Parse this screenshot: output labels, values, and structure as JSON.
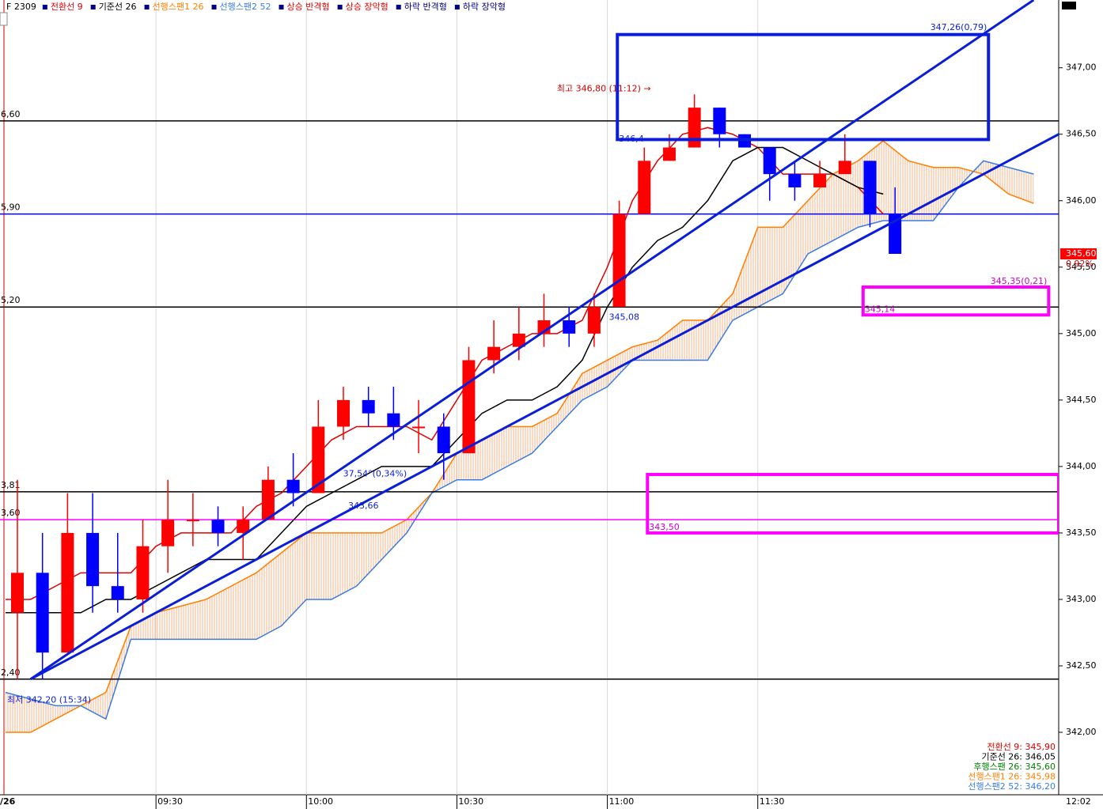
{
  "chart_data": {
    "type": "candlestick",
    "symbol": "F 2309",
    "up_color": "#ff0000",
    "down_color": "#0000ff",
    "ylim": [
      341.53,
      347.51
    ],
    "yticks": [
      {
        "value": 342,
        "label": "342,00"
      },
      {
        "value": 342.5,
        "label": "342,50"
      },
      {
        "value": 343,
        "label": "343,00"
      },
      {
        "value": 343.5,
        "label": "343,50"
      },
      {
        "value": 344,
        "label": "344,00"
      },
      {
        "value": 344.5,
        "label": "344,50"
      },
      {
        "value": 345,
        "label": "345,00"
      },
      {
        "value": 345.5,
        "label": "345,50"
      },
      {
        "value": 346,
        "label": "346,00"
      },
      {
        "value": 346.5,
        "label": "346,50"
      },
      {
        "value": 347,
        "label": "347,00"
      }
    ],
    "xlim": [
      "09:00",
      "12:30"
    ],
    "xticks": [
      "09:30",
      "10:00",
      "10:30",
      "11:00",
      "11:30"
    ],
    "date_label": "/26",
    "time_label": "12:02",
    "x": [
      "09:00",
      "09:05",
      "09:10",
      "09:15",
      "09:20",
      "09:25",
      "09:30",
      "09:35",
      "09:40",
      "09:45",
      "09:50",
      "09:55",
      "10:00",
      "10:05",
      "10:10",
      "10:15",
      "10:20",
      "10:25",
      "10:30",
      "10:35",
      "10:40",
      "10:45",
      "10:50",
      "10:55",
      "11:00",
      "11:05",
      "11:10",
      "11:15",
      "11:20",
      "11:25",
      "11:30",
      "11:35",
      "11:40",
      "11:45",
      "11:50",
      "11:55"
    ],
    "open": [
      342.9,
      343.2,
      342.6,
      343.5,
      343.1,
      343.0,
      343.4,
      343.6,
      343.6,
      343.5,
      343.6,
      343.9,
      343.8,
      344.3,
      344.5,
      344.4,
      344.3,
      344.3,
      344.1,
      344.8,
      344.9,
      345.0,
      345.1,
      345.0,
      345.2,
      345.9,
      346.3,
      346.4,
      346.7,
      346.5,
      346.4,
      346.2,
      346.1,
      346.2,
      346.3,
      345.9
    ],
    "high": [
      343.9,
      343.5,
      343.8,
      343.8,
      343.5,
      343.6,
      343.9,
      343.8,
      343.7,
      343.7,
      344.0,
      344.1,
      344.5,
      344.6,
      344.6,
      344.6,
      344.5,
      344.4,
      344.9,
      345.1,
      345.2,
      345.3,
      345.2,
      345.3,
      346.0,
      346.4,
      346.5,
      346.8,
      346.7,
      346.5,
      346.4,
      346.3,
      346.3,
      346.5,
      346.3,
      346.1
    ],
    "low": [
      342.4,
      342.4,
      342.6,
      342.9,
      342.9,
      342.9,
      343.2,
      343.4,
      343.4,
      343.3,
      343.6,
      343.7,
      343.8,
      344.2,
      344.3,
      344.2,
      344.1,
      343.9,
      344.1,
      344.7,
      344.8,
      344.9,
      344.9,
      344.9,
      345.2,
      345.9,
      346.3,
      346.4,
      346.4,
      346.4,
      346.0,
      346.0,
      346.1,
      346.2,
      345.8,
      345.6
    ],
    "close": [
      343.2,
      342.6,
      343.5,
      343.1,
      343.0,
      343.4,
      343.6,
      343.6,
      343.5,
      343.6,
      343.9,
      343.8,
      344.3,
      344.5,
      344.4,
      344.3,
      344.3,
      344.1,
      344.8,
      344.9,
      345.0,
      345.1,
      345.0,
      345.2,
      345.9,
      346.3,
      346.4,
      346.7,
      346.5,
      346.4,
      346.2,
      346.1,
      346.2,
      346.3,
      345.9,
      345.6
    ],
    "series": [
      {
        "name": "전환선 9",
        "color": "#dd0000",
        "values": [
          343.0,
          343.0,
          343.1,
          343.2,
          343.2,
          343.2,
          343.4,
          343.5,
          343.5,
          343.5,
          343.7,
          343.8,
          344.0,
          344.2,
          344.3,
          344.3,
          344.3,
          344.2,
          344.5,
          344.8,
          344.9,
          345.0,
          345.0,
          345.1,
          345.5,
          346.0,
          346.3,
          346.5,
          346.55,
          346.5,
          346.4,
          346.2,
          346.2,
          346.2,
          346.1,
          345.9
        ]
      },
      {
        "name": "기준선 26",
        "color": "#000000",
        "values": [
          342.9,
          342.9,
          342.9,
          342.9,
          343.0,
          343.0,
          343.1,
          343.2,
          343.3,
          343.3,
          343.3,
          343.5,
          343.7,
          343.8,
          343.9,
          344.0,
          344.0,
          344.0,
          344.2,
          344.4,
          344.5,
          344.5,
          344.6,
          344.8,
          345.2,
          345.5,
          345.7,
          345.8,
          346.0,
          346.3,
          346.4,
          346.4,
          346.3,
          346.2,
          346.1,
          346.05
        ]
      }
    ],
    "spans": {
      "x": [
        "09:00",
        "09:05",
        "09:10",
        "09:15",
        "09:20",
        "09:25",
        "09:30",
        "09:35",
        "09:40",
        "09:45",
        "09:50",
        "09:55",
        "10:00",
        "10:05",
        "10:10",
        "10:15",
        "10:20",
        "10:25",
        "10:30",
        "10:35",
        "10:40",
        "10:45",
        "10:50",
        "10:55",
        "11:00",
        "11:05",
        "11:10",
        "11:15",
        "11:20",
        "11:25",
        "11:30",
        "11:35",
        "11:40",
        "11:45",
        "11:50",
        "11:55",
        "12:00",
        "12:05",
        "12:10",
        "12:15",
        "12:20",
        "12:25"
      ],
      "series": [
        {
          "name": "선행스팬1 26",
          "color": "#ff7f00",
          "values": [
            342.0,
            342.0,
            342.1,
            342.2,
            342.3,
            342.8,
            342.9,
            342.95,
            343.0,
            343.1,
            343.2,
            343.35,
            343.5,
            343.5,
            343.5,
            343.5,
            343.6,
            343.8,
            344.1,
            344.2,
            344.3,
            344.3,
            344.4,
            344.7,
            344.8,
            344.9,
            344.95,
            345.1,
            345.1,
            345.3,
            345.8,
            345.8,
            346.0,
            346.2,
            346.3,
            346.45,
            346.3,
            346.25,
            346.25,
            346.2,
            346.05,
            345.98
          ]
        },
        {
          "name": "선행스팬2 52",
          "color": "#3a7de0",
          "values": [
            342.3,
            342.25,
            342.2,
            342.2,
            342.1,
            342.7,
            342.7,
            342.7,
            342.7,
            342.7,
            342.7,
            342.8,
            343.0,
            343.0,
            343.1,
            343.3,
            343.5,
            343.8,
            343.9,
            343.9,
            344.0,
            344.1,
            344.3,
            344.5,
            344.6,
            344.8,
            344.8,
            344.8,
            344.8,
            345.1,
            345.2,
            345.3,
            345.6,
            345.7,
            345.8,
            345.85,
            345.85,
            345.85,
            346.1,
            346.3,
            346.25,
            346.2
          ]
        }
      ]
    },
    "patterns": [
      {
        "name": "상승 반격형",
        "color": "#dd0000"
      },
      {
        "name": "상승 장악형",
        "color": "#dd0000"
      },
      {
        "name": "하락 반격형",
        "color": "#000080"
      },
      {
        "name": "하락 장악형",
        "color": "#000080"
      }
    ],
    "hlines": [
      {
        "value": 346.6,
        "label": "6,60",
        "color": "#000000"
      },
      {
        "value": 345.9,
        "label": "5,90",
        "color": "#0000ff"
      },
      {
        "value": 345.2,
        "label": "5,20",
        "color": "#000000"
      },
      {
        "value": 343.81,
        "label": "3,81",
        "color": "#000000"
      },
      {
        "value": 343.6,
        "label": "3,60",
        "color": "#ff00ff"
      },
      {
        "value": 342.4,
        "label": "2,40",
        "color": "#000000"
      }
    ],
    "trendlines": [
      {
        "x": [
          "09:05",
          "12:25"
        ],
        "y": [
          342.4,
          347.51
        ],
        "color": "#0a1ed8"
      },
      {
        "x": [
          "09:05",
          "12:30"
        ],
        "y": [
          342.4,
          346.5
        ],
        "color": "#0a1ed8"
      }
    ],
    "boxes": [
      {
        "x": [
          "11:02",
          "12:16"
        ],
        "y": [
          347.25,
          346.46
        ],
        "color": "#0a1ed8"
      },
      {
        "x": [
          "11:51",
          "12:28"
        ],
        "y": [
          345.35,
          345.14
        ],
        "color": "#ff00ff"
      },
      {
        "x": [
          "11:08",
          "12:30"
        ],
        "y": [
          343.94,
          343.5
        ],
        "color": "#ff00ff"
      }
    ],
    "annotations": [
      {
        "text": "347,26(0,79)",
        "x": "12:16",
        "y": 347.26,
        "color": "#0a1ed8",
        "align": "end"
      },
      {
        "text": "345,35(0,21)",
        "x": "12:28",
        "y": 345.35,
        "color": "#cc00cc",
        "align": "end"
      },
      {
        "text": "345,14",
        "x": "11:51",
        "y": 345.14,
        "color": "#cc00cc",
        "align": "start"
      },
      {
        "text": "343,50",
        "x": "11:08",
        "y": 343.5,
        "color": "#cc00cc",
        "align": "start"
      },
      {
        "text": "345,08",
        "x": "11:00",
        "y": 345.08,
        "color": "#0a1ed8",
        "align": "start"
      },
      {
        "text": "343,66",
        "x": "10:08",
        "y": 343.66,
        "color": "#0a1ed8",
        "align": "start"
      },
      {
        "text": "37,54°(0,34%)",
        "x": "10:07",
        "y": 343.9,
        "color": "#0a1ed8",
        "align": "start"
      },
      {
        "text": "최고 346,80 (11:12) →",
        "x": "11:09",
        "y": 346.8,
        "color": "#cc0000",
        "align": "end"
      },
      {
        "text": "최저 342,20 (15:34)",
        "x": "09:00",
        "y": 342.2,
        "color": "#0a1ed8",
        "align": "start"
      },
      {
        "text": "346,4",
        "x": "11:02",
        "y": 346.42,
        "color": "#0a1ed8",
        "align": "start"
      }
    ],
    "price_tag": {
      "value": 345.6,
      "label": "345,60"
    },
    "change_label": "0,92%",
    "status": [
      {
        "text": "전환선 9: 345,90",
        "color": "#dd0000"
      },
      {
        "text": "기준선 26: 346,05",
        "color": "#000000"
      },
      {
        "text": "후행스팬 26: 345,60",
        "color": "#008000"
      },
      {
        "text": "선행스팬1 26: 345,98",
        "color": "#ff7f00"
      },
      {
        "text": "선행스팬2 52: 346,20",
        "color": "#3a7de0"
      }
    ]
  }
}
